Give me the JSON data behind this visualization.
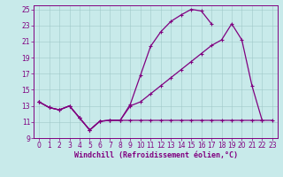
{
  "line_upper_x": [
    0,
    1,
    2,
    3,
    4,
    5,
    6,
    7,
    8,
    9,
    10,
    11,
    12,
    13,
    14,
    15,
    16,
    17,
    18,
    19,
    20,
    21,
    22,
    23
  ],
  "line_upper_y": [
    13.5,
    12.8,
    12.5,
    13.0,
    11.5,
    10.0,
    11.1,
    11.2,
    11.2,
    13.2,
    16.8,
    20.4,
    22.2,
    23.5,
    24.3,
    25.0,
    24.8,
    23.2,
    null,
    null,
    null,
    null,
    null,
    null
  ],
  "line_mid_x": [
    0,
    1,
    2,
    3,
    4,
    5,
    6,
    7,
    8,
    9,
    10,
    11,
    12,
    13,
    14,
    15,
    16,
    17,
    18,
    19,
    20,
    21,
    22,
    23
  ],
  "line_mid_y": [
    13.5,
    12.8,
    12.5,
    13.0,
    11.5,
    10.0,
    11.1,
    11.2,
    11.2,
    13.0,
    13.5,
    14.5,
    15.5,
    16.5,
    17.5,
    18.5,
    19.5,
    20.5,
    21.2,
    23.2,
    21.2,
    15.5,
    11.2,
    null
  ],
  "line_low_x": [
    0,
    1,
    2,
    3,
    4,
    5,
    6,
    7,
    8,
    9,
    10,
    11,
    12,
    13,
    14,
    15,
    16,
    17,
    18,
    19,
    20,
    21,
    22,
    23
  ],
  "line_low_y": [
    13.5,
    12.8,
    12.5,
    13.0,
    11.5,
    10.0,
    11.1,
    11.2,
    11.2,
    11.2,
    11.2,
    11.2,
    11.2,
    11.2,
    11.2,
    11.2,
    11.2,
    11.2,
    11.2,
    11.2,
    11.2,
    11.2,
    11.2,
    11.2
  ],
  "color": "#800080",
  "bg_color": "#c8eaea",
  "grid_color": "#a0c8c8",
  "xlabel": "Windchill (Refroidissement éolien,°C)",
  "ylim_min": 9,
  "ylim_max": 25.5,
  "xlim_min": -0.5,
  "xlim_max": 23.5,
  "yticks": [
    9,
    11,
    13,
    15,
    17,
    19,
    21,
    23,
    25
  ],
  "xticks": [
    0,
    1,
    2,
    3,
    4,
    5,
    6,
    7,
    8,
    9,
    10,
    11,
    12,
    13,
    14,
    15,
    16,
    17,
    18,
    19,
    20,
    21,
    22,
    23
  ],
  "tick_fontsize": 5.5,
  "xlabel_fontsize": 6.0,
  "linewidth": 0.9,
  "markersize": 3.0
}
